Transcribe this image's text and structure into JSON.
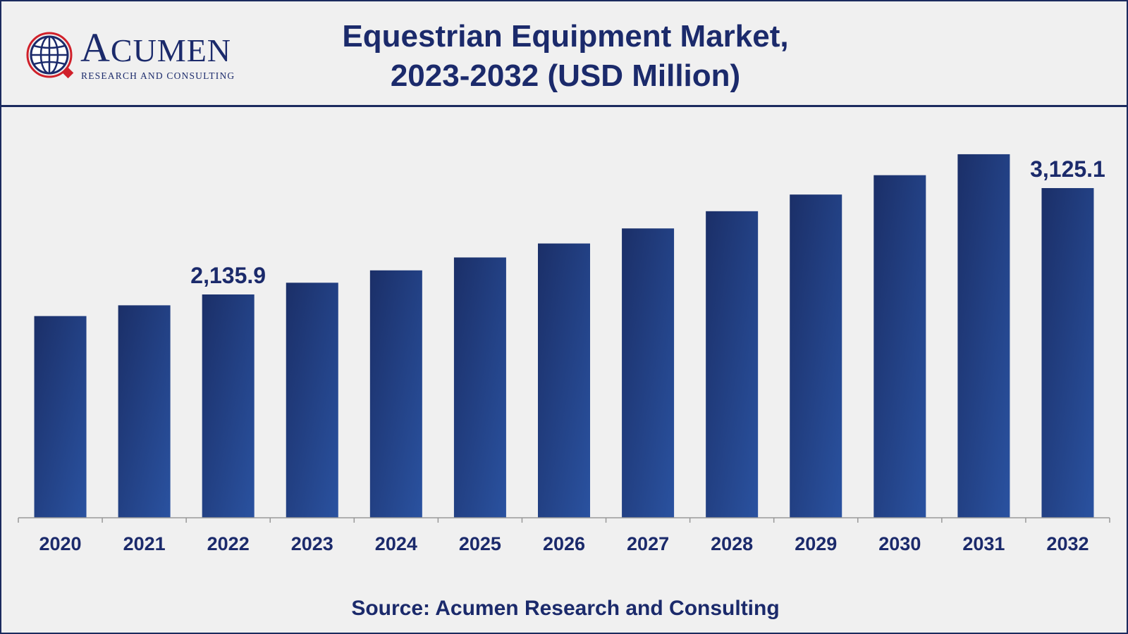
{
  "logo": {
    "word": "Acumen",
    "sub": "RESEARCH AND CONSULTING"
  },
  "header": {
    "title_line1": "Equestrian Equipment Market,",
    "title_line2": "2023-2032 (USD Million)"
  },
  "source": "Source: Acumen Research and Consulting",
  "colors": {
    "bar_dark": "#1b2f68",
    "bar_light": "#2a52a0",
    "text": "#1b2a6b",
    "axis": "#999999",
    "logo_red": "#d0202a"
  },
  "chart_data": {
    "type": "bar",
    "categories": [
      "2020",
      "2021",
      "2022",
      "2023",
      "2024",
      "2025",
      "2026",
      "2027",
      "2028",
      "2029",
      "2030",
      "2031",
      "2032"
    ],
    "values": [
      1935,
      2035,
      2135.9,
      2245,
      2360,
      2480,
      2610,
      2750,
      2910,
      3065,
      3245,
      3440,
      3125.1
    ],
    "data_labels": [
      {
        "index": 2,
        "text": "2,135.9"
      },
      {
        "index": 12,
        "text": "3,125.1"
      }
    ],
    "title": "Equestrian Equipment Market, 2023-2032 (USD Million)",
    "xlabel": "",
    "ylabel": "",
    "grid": false,
    "legend": "none"
  }
}
